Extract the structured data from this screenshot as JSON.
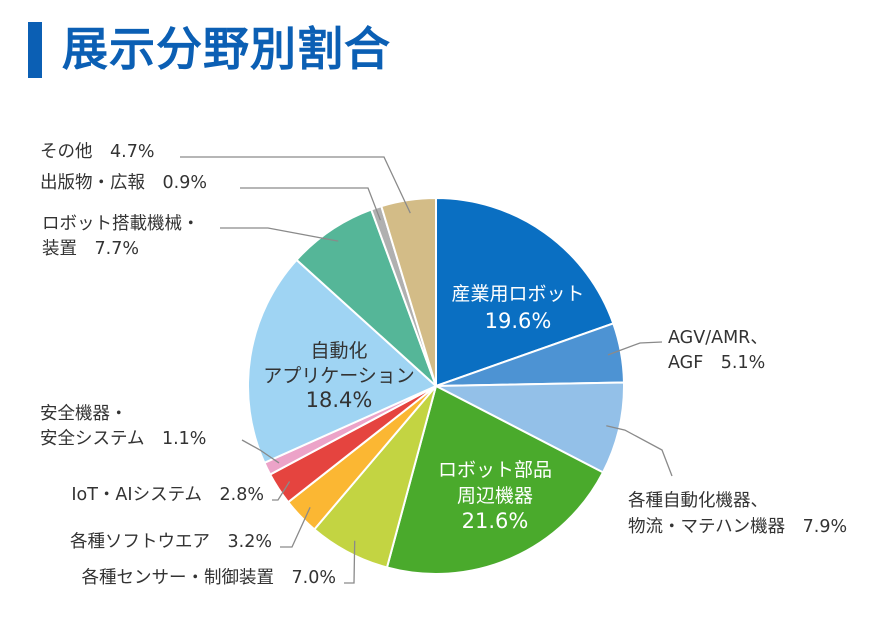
{
  "title": "展示分野別割合",
  "colors": {
    "accent": "#0b5fb4",
    "leader": "#8a8a8a",
    "label_text": "#333333",
    "inside_text": "#ffffff"
  },
  "chart_data": {
    "type": "pie",
    "title": "展示分野別割合",
    "start": "top",
    "direction": "clockwise",
    "slices": [
      {
        "label": "産業用ロボット",
        "value": 19.6,
        "value_label": "19.6%",
        "color": "#0a6fc2",
        "placement": "inside",
        "lines": [
          "産業用ロボット"
        ],
        "text_color": "#ffffff"
      },
      {
        "label": "AGV/AMR、AGF",
        "value": 5.1,
        "value_label": "5.1%",
        "color": "#4d93d3",
        "placement": "outside",
        "lines": [
          "AGV/AMR、",
          "AGF　5.1%"
        ]
      },
      {
        "label": "各種自動化機器、物流・マテハン機器",
        "value": 7.9,
        "value_label": "7.9%",
        "color": "#93c0e8",
        "placement": "outside",
        "lines": [
          "各種自動化機器、",
          "物流・マテハン機器　7.9%"
        ]
      },
      {
        "label": "ロボット部品周辺機器",
        "value": 21.6,
        "value_label": "21.6%",
        "color": "#4aaa2c",
        "placement": "inside",
        "lines": [
          "ロボット部品",
          "周辺機器"
        ],
        "text_color": "#ffffff"
      },
      {
        "label": "各種センサー・制御装置",
        "value": 7.0,
        "value_label": "7.0%",
        "color": "#c3d442",
        "placement": "outside",
        "lines": [
          "各種センサー・制御装置　7.0%"
        ]
      },
      {
        "label": "各種ソフトウエア",
        "value": 3.2,
        "value_label": "3.2%",
        "color": "#fbb733",
        "placement": "outside",
        "lines": [
          "各種ソフトウエア　3.2%"
        ]
      },
      {
        "label": "IoT・AIシステム",
        "value": 2.8,
        "value_label": "2.8%",
        "color": "#e5443f",
        "placement": "outside",
        "lines": [
          "IoT・AIシステム　2.8%"
        ]
      },
      {
        "label": "安全機器・安全システム",
        "value": 1.1,
        "value_label": "1.1%",
        "color": "#eca3c8",
        "placement": "outside",
        "lines": [
          "安全機器・",
          "安全システム　1.1%"
        ]
      },
      {
        "label": "自動化アプリケーション",
        "value": 18.4,
        "value_label": "18.4%",
        "color": "#9fd4f3",
        "placement": "inside",
        "lines": [
          "自動化",
          "アプリケーション"
        ],
        "text_color": "#333333"
      },
      {
        "label": "ロボット搭載機械・装置",
        "value": 7.7,
        "value_label": "7.7%",
        "color": "#55b698",
        "placement": "outside",
        "lines": [
          "ロボット搭載機械・",
          "装置　7.7%"
        ]
      },
      {
        "label": "出版物・広報",
        "value": 0.9,
        "value_label": "0.9%",
        "color": "#b0b0b0",
        "placement": "outside",
        "lines": [
          "出版物・広報　0.9%"
        ]
      },
      {
        "label": "その他",
        "value": 4.7,
        "value_label": "4.7%",
        "color": "#d3bc87",
        "placement": "outside",
        "lines": [
          "その他　4.7%"
        ]
      }
    ]
  }
}
